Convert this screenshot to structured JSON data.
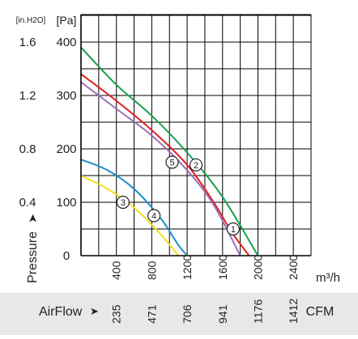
{
  "chart_data": {
    "type": "line",
    "y_primary_unit": "[Pa]",
    "y_secondary_unit": "[in.H2O]",
    "y_ticks_pa": [
      0,
      100,
      200,
      300,
      400
    ],
    "y_ticks_inh2o": [
      "0.4",
      "0.8",
      "1.2",
      "1.6"
    ],
    "y_axis_label": "Pressure",
    "ylim": [
      0,
      400
    ],
    "x_top_unit": "m³/h",
    "x_top_ticks": [
      400,
      800,
      1200,
      1600,
      2000,
      2400
    ],
    "x_bottom_label": "AirFlow",
    "x_bottom_unit": "CFM",
    "x_bottom_ticks": [
      235,
      471,
      706,
      941,
      1176,
      1412
    ],
    "xlim": [
      0,
      2600
    ],
    "grid": true,
    "series": [
      {
        "name": "1",
        "color": "#e02020",
        "x": [
          0,
          400,
          800,
          1200,
          1500,
          1700,
          1900
        ],
        "y": [
          340,
          290,
          235,
          170,
          100,
          45,
          0
        ],
        "label_at": [
          1720,
          50
        ]
      },
      {
        "name": "2",
        "color": "#18a050",
        "x": [
          0,
          400,
          800,
          1200,
          1600,
          2000
        ],
        "y": [
          390,
          320,
          262,
          193,
          110,
          0
        ],
        "label_at": [
          1300,
          170
        ]
      },
      {
        "name": "3",
        "color": "#f0e020",
        "x": [
          0,
          300,
          600,
          900,
          1100
        ],
        "y": [
          150,
          125,
          90,
          40,
          0
        ],
        "label_at": [
          475,
          100
        ]
      },
      {
        "name": "4",
        "color": "#1a90c8",
        "x": [
          0,
          300,
          600,
          900,
          1100,
          1200
        ],
        "y": [
          180,
          160,
          125,
          70,
          20,
          0
        ],
        "label_at": [
          825,
          75
        ]
      },
      {
        "name": "5",
        "color": "#9a70b8",
        "x": [
          0,
          400,
          800,
          1200,
          1500,
          1800
        ],
        "y": [
          325,
          275,
          225,
          160,
          95,
          0
        ],
        "label_at": [
          1030,
          175
        ]
      }
    ]
  }
}
